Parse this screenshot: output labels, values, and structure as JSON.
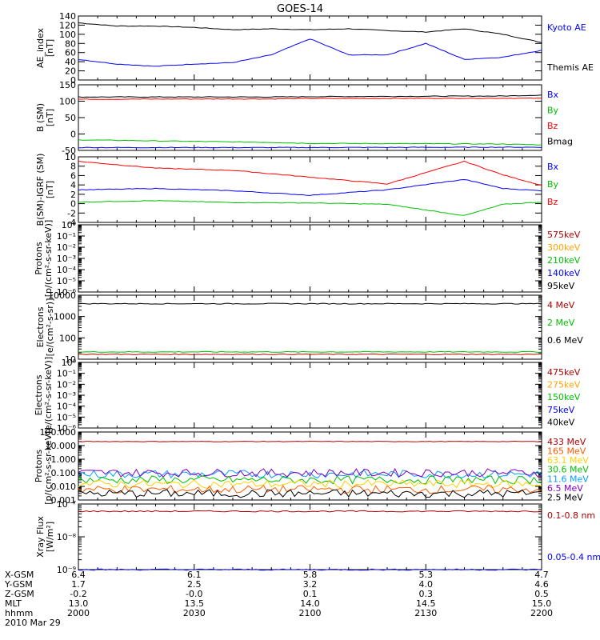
{
  "title": "GOES-14",
  "x_range": [
    "2000",
    "2200"
  ],
  "panels": [
    {
      "id": "ae",
      "ylabel": [
        "AE_index",
        "[nT]"
      ],
      "ticks": [
        "140",
        "120",
        "100",
        "80",
        "60",
        "40",
        "20",
        "0"
      ],
      "scale": "linear",
      "ylim": [
        0,
        140
      ],
      "legend": [
        {
          "label": "Kyoto AE",
          "color": "#0000ff"
        },
        {
          "label": "Themis AE",
          "color": "#000000"
        }
      ]
    },
    {
      "id": "bsm",
      "ylabel": [
        "B (SM)",
        "[nT]"
      ],
      "ticks": [
        "150",
        "100",
        "50",
        "0",
        "-50"
      ],
      "scale": "linear",
      "ylim": [
        -55,
        150
      ],
      "legend": [
        {
          "label": "Bx",
          "color": "#0000ff"
        },
        {
          "label": "By",
          "color": "#00c000"
        },
        {
          "label": "Bz",
          "color": "#ff0000"
        },
        {
          "label": "Bmag",
          "color": "#000000"
        }
      ]
    },
    {
      "id": "bigrf",
      "ylabel": [
        "B(SM)-IGRF (SM)",
        "[nT]"
      ],
      "ticks": [
        "10",
        "8",
        "6",
        "4",
        "2",
        "0",
        "-2",
        "-4"
      ],
      "scale": "linear",
      "ylim": [
        -4,
        10.5
      ],
      "legend": [
        {
          "label": "Bx",
          "color": "#0000ff"
        },
        {
          "label": "By",
          "color": "#00c000"
        },
        {
          "label": "Bz",
          "color": "#ff0000"
        }
      ]
    },
    {
      "id": "protons_low",
      "ylabel": [
        "Protons",
        "[p/(cm²-s-sr-keV)]"
      ],
      "ticks": [
        "10⁰",
        "10⁻¹",
        "10⁻²",
        "10⁻³",
        "10⁻⁴",
        "10⁻⁵",
        "10⁻⁶"
      ],
      "scale": "log",
      "legend": [
        {
          "label": "575keV",
          "color": "#b00000"
        },
        {
          "label": "300keV",
          "color": "#ffa500"
        },
        {
          "label": "210keV",
          "color": "#00c000"
        },
        {
          "label": "140keV",
          "color": "#0000ff"
        },
        {
          "label": "95keV",
          "color": "#000000"
        }
      ]
    },
    {
      "id": "electrons_mev",
      "ylabel": [
        "Electrons",
        "[e/(cm²-s-sr)]"
      ],
      "ticks": [
        "10000",
        "1000",
        "100",
        "10"
      ],
      "scale": "log",
      "ylim": [
        10,
        10000
      ],
      "legend": [
        {
          "label": "4 MeV",
          "color": "#b00000"
        },
        {
          "label": "2 MeV",
          "color": "#00c000"
        },
        {
          "label": "0.6 MeV",
          "color": "#000000"
        }
      ]
    },
    {
      "id": "electrons_kev",
      "ylabel": [
        "Electrons",
        "[e/(cm²-s-sr-keV)]"
      ],
      "ticks": [
        "10⁰",
        "10⁻¹",
        "10⁻²",
        "10⁻³",
        "10⁻⁴",
        "10⁻⁵",
        "10⁻⁶"
      ],
      "scale": "log",
      "legend": [
        {
          "label": "475keV",
          "color": "#b00000"
        },
        {
          "label": "275keV",
          "color": "#ffa500"
        },
        {
          "label": "150keV",
          "color": "#00c000"
        },
        {
          "label": "75keV",
          "color": "#0000ff"
        },
        {
          "label": "40keV",
          "color": "#000000"
        }
      ]
    },
    {
      "id": "protons_mev",
      "ylabel": [
        "Protons",
        "[p/(cm²-s-sr-keV)]"
      ],
      "ticks": [
        "100.000",
        "10.000",
        "1.000",
        "0.100",
        "0.010",
        "0.001"
      ],
      "scale": "log",
      "ylim": [
        0.001,
        100
      ],
      "legend": [
        {
          "label": "433 MeV",
          "color": "#b00000"
        },
        {
          "label": "165 MeV",
          "color": "#ff5a00"
        },
        {
          "label": "63.1 MeV",
          "color": "#ffd000"
        },
        {
          "label": "30.6 MeV",
          "color": "#00c000"
        },
        {
          "label": "11.6 MeV",
          "color": "#00a0ff"
        },
        {
          "label": "6.5 MeV",
          "color": "#8000c0"
        },
        {
          "label": "2.5 MeV",
          "color": "#000000"
        }
      ]
    },
    {
      "id": "xray",
      "ylabel": [
        "Xray Flux",
        "[W/m²]"
      ],
      "ticks": [
        "10⁻⁷",
        "10⁻⁸",
        "10⁻⁹"
      ],
      "scale": "log",
      "ylim": [
        1e-09,
        1e-07
      ],
      "legend": [
        {
          "label": "0.1-0.8 nm",
          "color": "#b00000"
        },
        {
          "label": "0.05-0.4 nm",
          "color": "#0000ff"
        }
      ]
    }
  ],
  "footer": {
    "row_labels": [
      "X-GSM",
      "Y-GSM",
      "Z-GSM",
      "MLT",
      "hhmm"
    ],
    "columns": [
      {
        "values": [
          "6.4",
          "1.7",
          "-0.2",
          "13.0",
          "2000"
        ]
      },
      {
        "values": [
          "6.1",
          "2.5",
          "-0.0",
          "13.5",
          "2030"
        ]
      },
      {
        "values": [
          "5.8",
          "3.2",
          "0.1",
          "14.0",
          "2100"
        ]
      },
      {
        "values": [
          "5.3",
          "4.0",
          "0.3",
          "14.5",
          "2130"
        ]
      },
      {
        "values": [
          "4.7",
          "4.6",
          "0.5",
          "15.0",
          "2200"
        ]
      }
    ],
    "date": "2010 Mar 29"
  },
  "chart_data": [
    {
      "type": "line",
      "panel": "ae",
      "title": "GOES-14",
      "ylabel": "AE_index [nT]",
      "ylim": [
        0,
        140
      ],
      "x": [
        "2000",
        "2010",
        "2020",
        "2030",
        "2040",
        "2050",
        "2100",
        "2110",
        "2120",
        "2130",
        "2140",
        "2150",
        "2200"
      ],
      "series": [
        {
          "name": "Themis AE",
          "values": [
            125,
            118,
            118,
            115,
            110,
            112,
            110,
            112,
            108,
            105,
            112,
            100,
            82
          ]
        },
        {
          "name": "Kyoto AE",
          "values": [
            45,
            35,
            30,
            35,
            38,
            55,
            90,
            55,
            55,
            80,
            45,
            50,
            65
          ]
        }
      ]
    },
    {
      "type": "line",
      "panel": "bsm",
      "ylabel": "B (SM) [nT]",
      "ylim": [
        -55,
        150
      ],
      "x": [
        "2000",
        "2050",
        "2100",
        "2150",
        "2200"
      ],
      "series": [
        {
          "name": "Bmag",
          "values": [
            112,
            112,
            113,
            115,
            118
          ]
        },
        {
          "name": "Bz",
          "values": [
            105,
            106,
            107,
            108,
            108
          ]
        },
        {
          "name": "By",
          "values": [
            -22,
            -30,
            -33,
            -35,
            -38
          ]
        },
        {
          "name": "Bx",
          "values": [
            -46,
            -46,
            -46,
            -45,
            -45
          ]
        }
      ]
    },
    {
      "type": "line",
      "panel": "bigrf",
      "ylabel": "B(SM)-IGRF (SM) [nT]",
      "ylim": [
        -4,
        10.5
      ],
      "x": [
        "2000",
        "2020",
        "2040",
        "2100",
        "2120",
        "2140",
        "2150",
        "2200"
      ],
      "series": [
        {
          "name": "Bz",
          "values": [
            9.5,
            8.0,
            7.5,
            6.0,
            4.5,
            9.5,
            6.5,
            4.2
          ]
        },
        {
          "name": "Bx",
          "values": [
            3.2,
            3.5,
            3.0,
            2.0,
            3.2,
            5.5,
            3.5,
            3.0
          ]
        },
        {
          "name": "By",
          "values": [
            0.5,
            0.8,
            0.4,
            0.3,
            0.0,
            -2.5,
            0.0,
            0.5
          ]
        }
      ]
    },
    {
      "type": "line",
      "panel": "electrons_mev",
      "ylabel": "Electrons [e/(cm²-s-sr)]",
      "ylim": [
        10,
        10000
      ],
      "scale": "log",
      "x": [
        "2000",
        "2100",
        "2200"
      ],
      "series": [
        {
          "name": "0.6 MeV",
          "values": [
            4000,
            4000,
            4000
          ]
        },
        {
          "name": "2 MeV",
          "values": [
            22,
            22,
            22
          ]
        },
        {
          "name": "4 MeV",
          "values": [
            17,
            17,
            17
          ]
        }
      ]
    },
    {
      "type": "line",
      "panel": "protons_mev",
      "ylabel": "Protons [p/(cm²-s-sr-keV)]",
      "ylim": [
        0.001,
        100
      ],
      "scale": "log",
      "x": [
        "2000",
        "2100",
        "2200"
      ],
      "series": [
        {
          "name": "433 MeV",
          "values": [
            20,
            20,
            20
          ]
        },
        {
          "name": "11.6 MeV",
          "values": [
            0.08,
            0.08,
            0.08
          ]
        },
        {
          "name": "6.5 MeV",
          "values": [
            0.1,
            0.1,
            0.1
          ]
        },
        {
          "name": "30.6 MeV",
          "values": [
            0.03,
            0.03,
            0.03
          ]
        },
        {
          "name": "63.1 MeV",
          "values": [
            0.015,
            0.015,
            0.015
          ]
        },
        {
          "name": "165 MeV",
          "values": [
            0.006,
            0.006,
            0.006
          ]
        },
        {
          "name": "2.5 MeV",
          "values": [
            0.003,
            0.003,
            0.003
          ]
        }
      ]
    },
    {
      "type": "line",
      "panel": "xray",
      "ylabel": "Xray Flux [W/m²]",
      "ylim": [
        1e-09,
        1e-07
      ],
      "scale": "log",
      "x": [
        "2000",
        "2100",
        "2200"
      ],
      "series": [
        {
          "name": "0.1-0.8 nm",
          "values": [
            6e-08,
            6e-08,
            6e-08
          ]
        },
        {
          "name": "0.05-0.4 nm",
          "values": [
            1e-09,
            1e-09,
            1e-09
          ]
        }
      ]
    }
  ]
}
